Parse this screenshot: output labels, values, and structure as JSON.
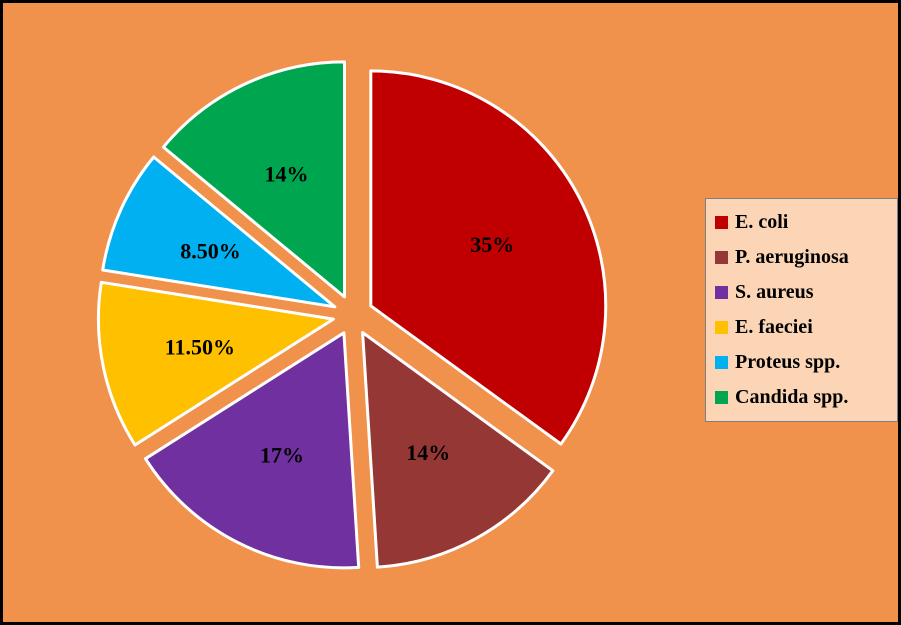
{
  "background": {
    "color": "#F0924C",
    "border_color": "#000000"
  },
  "chart_data": {
    "type": "pie",
    "title": "",
    "exploded": true,
    "start_angle_deg": 0,
    "direction": "clockwise",
    "slice_border_color": "#FFFFFF",
    "label_color": "#000000",
    "categories": [
      "E. coli",
      "P. aeruginosa",
      "S. aureus",
      "E. faeciei",
      "Proteus spp.",
      "Candida spp."
    ],
    "values": [
      35,
      14,
      17,
      11.5,
      8.5,
      14
    ],
    "slices": [
      {
        "label": "E. coli",
        "value": 35,
        "display": "35%",
        "color": "#C00000"
      },
      {
        "label": "P. aeruginosa",
        "value": 14,
        "display": "14%",
        "color": "#953735"
      },
      {
        "label": "S. aureus",
        "value": 17,
        "display": "17%",
        "color": "#7030A0"
      },
      {
        "label": "E. faeciei",
        "value": 11.5,
        "display": "11.50%",
        "color": "#FFC000"
      },
      {
        "label": "Proteus spp.",
        "value": 8.5,
        "display": "8.50%",
        "color": "#00B0F0"
      },
      {
        "label": "Candida spp.",
        "value": 14,
        "display": "14%",
        "color": "#00A550"
      }
    ],
    "legend": {
      "position": "right",
      "background": "#FBD5B5",
      "border_color": "#7F7F7F"
    }
  }
}
